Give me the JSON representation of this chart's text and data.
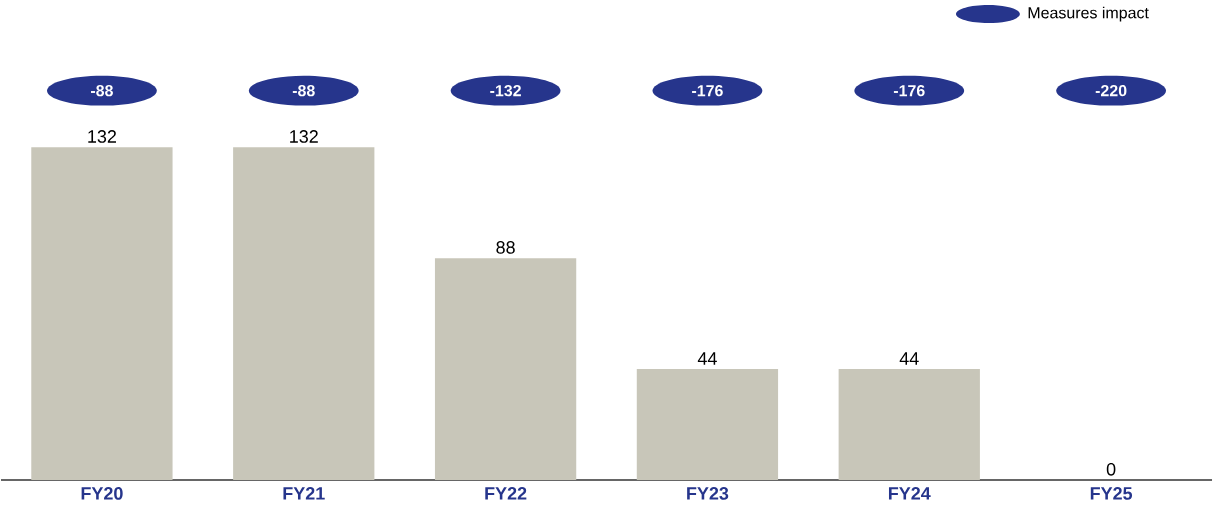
{
  "chart_data": {
    "type": "bar",
    "categories": [
      "FY20",
      "FY21",
      "FY22",
      "FY23",
      "FY24",
      "FY25"
    ],
    "series": [
      {
        "color": "#c8c6b9",
        "values": [
          132,
          132,
          88,
          44,
          44,
          0
        ]
      }
    ],
    "annotations": [
      "Measures impact",
      "-88",
      "-88",
      "-132",
      "-176",
      "-176",
      "-220"
    ],
    "data_labels": true
  }
}
